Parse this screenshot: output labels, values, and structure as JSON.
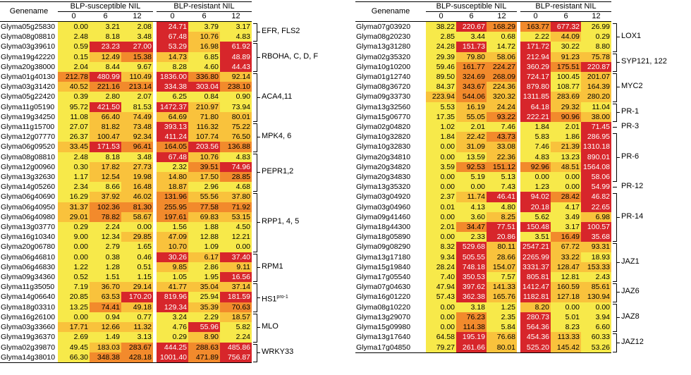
{
  "header": {
    "genename": "Genename",
    "susceptible": "BLP-susceptible NIL",
    "resistant": "BLP-resistant NIL",
    "timepoints": [
      "0",
      "6",
      "12",
      "0",
      "6",
      "12"
    ]
  },
  "left_rows": [
    {
      "gene": "Glyma05g25830",
      "values": [
        "0.00",
        "3.21",
        "2.08",
        "24.71",
        "3.79",
        "3.17"
      ],
      "levels": [
        1,
        1,
        1,
        4,
        1,
        1
      ]
    },
    {
      "gene": "Glyma08g08810",
      "values": [
        "2.48",
        "8.18",
        "3.48",
        "67.48",
        "10.76",
        "4.83"
      ],
      "levels": [
        1,
        1,
        1,
        4,
        2,
        1
      ]
    },
    {
      "gene": "Glyma03g39610",
      "values": [
        "0.59",
        "23.23",
        "27.00",
        "53.29",
        "16.98",
        "61.92"
      ],
      "levels": [
        1,
        4,
        4,
        4,
        2,
        4
      ]
    },
    {
      "gene": "Glyma19g42220",
      "values": [
        "0.15",
        "12.49",
        "15.38",
        "14.73",
        "6.85",
        "48.89"
      ],
      "levels": [
        1,
        2,
        3,
        2,
        1,
        4
      ]
    },
    {
      "gene": "Glyma20g38000",
      "values": [
        "2.04",
        "8.44",
        "9.67",
        "8.28",
        "4.60",
        "44.43"
      ],
      "levels": [
        1,
        1,
        1,
        1,
        1,
        4
      ]
    },
    {
      "gene": "Glyma01g40130",
      "values": [
        "212.78",
        "480.99",
        "110.49",
        "1836.00",
        "336.80",
        "92.14"
      ],
      "levels": [
        3,
        4,
        2,
        4,
        3,
        2
      ]
    },
    {
      "gene": "Glyma03g31420",
      "values": [
        "40.52",
        "221.16",
        "213.14",
        "334.38",
        "303.04",
        "238.10"
      ],
      "levels": [
        2,
        3,
        3,
        4,
        4,
        3
      ]
    },
    {
      "gene": "Glyma05g22420",
      "values": [
        "0.39",
        "2.80",
        "2.07",
        "6.25",
        "0.84",
        "0.90"
      ],
      "levels": [
        1,
        1,
        1,
        1,
        1,
        1
      ]
    },
    {
      "gene": "Glyma11g05190",
      "values": [
        "95.72",
        "421.50",
        "81.53",
        "1472.37",
        "210.97",
        "73.94"
      ],
      "levels": [
        1,
        4,
        1,
        4,
        2,
        1
      ]
    },
    {
      "gene": "Glyma19g34250",
      "values": [
        "11.08",
        "66.40",
        "74.49",
        "64.69",
        "71.80",
        "80.01"
      ],
      "levels": [
        1,
        2,
        2,
        2,
        2,
        2
      ]
    },
    {
      "gene": "Glyma11g15700",
      "values": [
        "27.07",
        "81.82",
        "73.48",
        "393.13",
        "116.32",
        "75.22"
      ],
      "levels": [
        1,
        2,
        2,
        4,
        2,
        2
      ]
    },
    {
      "gene": "Glyma12g07770",
      "values": [
        "26.37",
        "100.47",
        "92.34",
        "411.24",
        "107.74",
        "76.50"
      ],
      "levels": [
        1,
        2,
        2,
        4,
        2,
        2
      ]
    },
    {
      "gene": "Glyma06g09520",
      "values": [
        "33.45",
        "171.53",
        "96.41",
        "164.05",
        "203.56",
        "136.88"
      ],
      "levels": [
        2,
        4,
        3,
        3,
        4,
        3
      ]
    },
    {
      "gene": "Glyma08g08810",
      "values": [
        "2.48",
        "8.18",
        "3.48",
        "67.48",
        "10.76",
        "4.83"
      ],
      "levels": [
        1,
        1,
        1,
        4,
        2,
        1
      ]
    },
    {
      "gene": "Glyma12g00960",
      "values": [
        "0.30",
        "17.82",
        "27.73",
        "2.32",
        "39.51",
        "74.96"
      ],
      "levels": [
        1,
        2,
        2,
        1,
        3,
        4
      ]
    },
    {
      "gene": "Glyma13g32630",
      "values": [
        "1.17",
        "12.54",
        "19.98",
        "14.80",
        "17.50",
        "28.85"
      ],
      "levels": [
        1,
        2,
        2,
        2,
        2,
        3
      ]
    },
    {
      "gene": "Glyma14g05260",
      "values": [
        "2.34",
        "8.66",
        "16.48",
        "18.87",
        "2.96",
        "4.68"
      ],
      "levels": [
        1,
        1,
        2,
        2,
        1,
        1
      ]
    },
    {
      "gene": "Glyma06g40690",
      "values": [
        "16.29",
        "37.92",
        "46.02",
        "131.96",
        "55.56",
        "37.80"
      ],
      "levels": [
        1,
        2,
        2,
        3,
        2,
        2
      ]
    },
    {
      "gene": "Glyma06g40950",
      "values": [
        "31.37",
        "102.36",
        "81.30",
        "255.95",
        "77.58",
        "71.92"
      ],
      "levels": [
        2,
        3,
        3,
        3,
        3,
        3
      ]
    },
    {
      "gene": "Glyma06g40980",
      "values": [
        "29.01",
        "78.82",
        "58.67",
        "197.61",
        "69.83",
        "53.15"
      ],
      "levels": [
        2,
        3,
        2,
        3,
        2,
        2
      ]
    },
    {
      "gene": "Glyma13g03770",
      "values": [
        "0.29",
        "2.24",
        "0.00",
        "1.56",
        "1.88",
        "4.50"
      ],
      "levels": [
        1,
        1,
        1,
        1,
        1,
        1
      ]
    },
    {
      "gene": "Glyma16g10340",
      "values": [
        "9.00",
        "12.34",
        "29.85",
        "47.09",
        "12.88",
        "12.21"
      ],
      "levels": [
        1,
        1,
        2,
        2,
        1,
        1
      ]
    },
    {
      "gene": "Glyma20g06780",
      "values": [
        "0.00",
        "2.79",
        "1.65",
        "10.70",
        "1.09",
        "0.00"
      ],
      "levels": [
        1,
        1,
        1,
        2,
        1,
        1
      ]
    },
    {
      "gene": "Glyma06g46810",
      "values": [
        "0.00",
        "0.38",
        "0.46",
        "30.26",
        "6.17",
        "37.40"
      ],
      "levels": [
        1,
        1,
        1,
        4,
        2,
        4
      ]
    },
    {
      "gene": "Glyma06g46830",
      "values": [
        "1.22",
        "1.28",
        "0.51",
        "9.85",
        "2.86",
        "9.11"
      ],
      "levels": [
        1,
        1,
        1,
        2,
        1,
        2
      ]
    },
    {
      "gene": "Glyma09g34360",
      "values": [
        "0.52",
        "1.51",
        "1.15",
        "1.05",
        "1.95",
        "16.56"
      ],
      "levels": [
        1,
        1,
        1,
        1,
        1,
        4
      ]
    },
    {
      "gene": "Glyma11g35050",
      "values": [
        "7.19",
        "36.70",
        "29.14",
        "41.77",
        "35.04",
        "37.14"
      ],
      "levels": [
        1,
        2,
        2,
        2,
        2,
        2
      ]
    },
    {
      "gene": "Glyma14g06640",
      "values": [
        "20.85",
        "63.53",
        "170.20",
        "819.96",
        "25.94",
        "181.59"
      ],
      "levels": [
        1,
        2,
        4,
        4,
        1,
        4
      ]
    },
    {
      "gene": "Glyma18g03310",
      "values": [
        "13.25",
        "74.41",
        "49.18",
        "129.34",
        "35.39",
        "70.63"
      ],
      "levels": [
        1,
        3,
        2,
        4,
        2,
        3
      ]
    },
    {
      "gene": "Glyma16g26100",
      "values": [
        "0.00",
        "0.94",
        "0.77",
        "3.24",
        "2.29",
        "18.57"
      ],
      "levels": [
        1,
        1,
        1,
        1,
        1,
        2
      ]
    },
    {
      "gene": "Glyma03g33660",
      "values": [
        "17.71",
        "12.66",
        "11.32",
        "4.76",
        "55.96",
        "5.82"
      ],
      "levels": [
        2,
        2,
        2,
        1,
        4,
        1
      ]
    },
    {
      "gene": "Glyma19g36370",
      "values": [
        "2.69",
        "1.49",
        "3.13",
        "0.29",
        "8.90",
        "2.24"
      ],
      "levels": [
        1,
        1,
        1,
        1,
        2,
        1
      ]
    },
    {
      "gene": "Glyma02g39870",
      "values": [
        "49.45",
        "183.03",
        "283.67",
        "444.25",
        "288.63",
        "485.86"
      ],
      "levels": [
        1,
        2,
        3,
        4,
        3,
        4
      ]
    },
    {
      "gene": "Glyma14g38010",
      "values": [
        "66.30",
        "348.38",
        "428.18",
        "1001.40",
        "471.89",
        "756.87"
      ],
      "levels": [
        1,
        3,
        3,
        4,
        3,
        4
      ]
    }
  ],
  "right_rows": [
    {
      "gene": "Glyma07g03920",
      "values": [
        "38.22",
        "220.67",
        "168.29",
        "163.77",
        "677.32",
        "26.99"
      ],
      "levels": [
        1,
        4,
        3,
        3,
        4,
        1
      ]
    },
    {
      "gene": "Glyma08g20230",
      "values": [
        "2.85",
        "3.44",
        "0.68",
        "2.22",
        "44.09",
        "0.29"
      ],
      "levels": [
        1,
        1,
        1,
        1,
        2,
        1
      ]
    },
    {
      "gene": "Glyma13g31280",
      "values": [
        "24.28",
        "151.73",
        "14.72",
        "171.72",
        "30.22",
        "8.80"
      ],
      "levels": [
        1,
        4,
        1,
        4,
        1,
        1
      ]
    },
    {
      "gene": "Glyma02g35320",
      "values": [
        "29.39",
        "79.80",
        "58.06",
        "212.94",
        "91.23",
        "75.78"
      ],
      "levels": [
        1,
        2,
        2,
        4,
        2,
        2
      ]
    },
    {
      "gene": "Glyma10g10200",
      "values": [
        "59.46",
        "161.77",
        "224.27",
        "360.29",
        "175.51",
        "220.87"
      ],
      "levels": [
        1,
        3,
        3,
        4,
        3,
        4
      ]
    },
    {
      "gene": "Glyma01g12740",
      "values": [
        "89.50",
        "324.69",
        "268.09",
        "724.17",
        "100.45",
        "201.07"
      ],
      "levels": [
        1,
        3,
        3,
        4,
        1,
        2
      ]
    },
    {
      "gene": "Glyma08g36720",
      "values": [
        "84.37",
        "343.67",
        "224.36",
        "879.80",
        "108.77",
        "164.39"
      ],
      "levels": [
        1,
        3,
        2,
        4,
        1,
        2
      ]
    },
    {
      "gene": "Glyma09g33730",
      "values": [
        "223.94",
        "544.06",
        "320.32",
        "1311.85",
        "283.69",
        "280.20"
      ],
      "levels": [
        2,
        3,
        2,
        4,
        2,
        2
      ]
    },
    {
      "gene": "Glyma13g32560",
      "values": [
        "5.53",
        "16.19",
        "24.24",
        "64.18",
        "29.32",
        "11.04"
      ],
      "levels": [
        1,
        2,
        2,
        4,
        2,
        1
      ]
    },
    {
      "gene": "Glyma15g06770",
      "values": [
        "17.35",
        "55.05",
        "93.22",
        "222.21",
        "90.96",
        "38.00"
      ],
      "levels": [
        1,
        2,
        3,
        4,
        3,
        2
      ]
    },
    {
      "gene": "Glyma02g04820",
      "values": [
        "1.02",
        "2.01",
        "7.46",
        "1.84",
        "2.01",
        "71.45"
      ],
      "levels": [
        1,
        1,
        1,
        1,
        1,
        4
      ]
    },
    {
      "gene": "Glyma10g32820",
      "values": [
        "1.84",
        "22.42",
        "43.73",
        "5.83",
        "1.86",
        "286.95"
      ],
      "levels": [
        1,
        2,
        3,
        1,
        1,
        4
      ]
    },
    {
      "gene": "Glyma10g32830",
      "values": [
        "0.00",
        "31.09",
        "33.08",
        "7.46",
        "21.39",
        "1310.18"
      ],
      "levels": [
        1,
        2,
        2,
        1,
        2,
        4
      ]
    },
    {
      "gene": "Glyma20g34810",
      "values": [
        "0.00",
        "13.59",
        "22.36",
        "4.83",
        "13.23",
        "890.01"
      ],
      "levels": [
        1,
        1,
        2,
        1,
        1,
        4
      ]
    },
    {
      "gene": "Glyma20g34820",
      "values": [
        "3.59",
        "92.53",
        "151.12",
        "92.96",
        "48.51",
        "1564.08"
      ],
      "levels": [
        1,
        3,
        3,
        3,
        2,
        4
      ]
    },
    {
      "gene": "Glyma20g34830",
      "values": [
        "0.00",
        "5.19",
        "5.13",
        "0.00",
        "0.00",
        "58.06"
      ],
      "levels": [
        1,
        1,
        1,
        1,
        1,
        4
      ]
    },
    {
      "gene": "Glyma13g35320",
      "values": [
        "0.00",
        "0.00",
        "7.43",
        "1.23",
        "0.00",
        "54.99"
      ],
      "levels": [
        1,
        1,
        1,
        1,
        1,
        4
      ]
    },
    {
      "gene": "Glyma03g04920",
      "values": [
        "2.37",
        "11.74",
        "46.41",
        "94.02",
        "28.42",
        "46.82"
      ],
      "levels": [
        1,
        2,
        4,
        4,
        3,
        4
      ]
    },
    {
      "gene": "Glyma03g04960",
      "values": [
        "0.01",
        "4.13",
        "4.80",
        "20.18",
        "4.17",
        "22.65"
      ],
      "levels": [
        1,
        1,
        1,
        4,
        1,
        4
      ]
    },
    {
      "gene": "Glyma09g41460",
      "values": [
        "0.00",
        "3.60",
        "8.25",
        "5.62",
        "3.49",
        "6.98"
      ],
      "levels": [
        1,
        1,
        2,
        1,
        1,
        2
      ]
    },
    {
      "gene": "Glyma18g44300",
      "values": [
        "2.01",
        "34.47",
        "77.51",
        "150.48",
        "3.17",
        "100.57"
      ],
      "levels": [
        1,
        3,
        4,
        4,
        1,
        4
      ]
    },
    {
      "gene": "Glyma18g05890",
      "values": [
        "0.00",
        "2.33",
        "20.86",
        "3.51",
        "16.49",
        "35.68"
      ],
      "levels": [
        1,
        1,
        4,
        1,
        3,
        4
      ]
    },
    {
      "gene": "Glyma09g08290",
      "values": [
        "8.32",
        "529.68",
        "80.11",
        "2547.21",
        "67.72",
        "93.31"
      ],
      "levels": [
        1,
        4,
        2,
        4,
        2,
        2
      ]
    },
    {
      "gene": "Glyma13g17180",
      "values": [
        "9.34",
        "505.55",
        "28.66",
        "2265.99",
        "33.22",
        "18.93"
      ],
      "levels": [
        1,
        4,
        2,
        4,
        2,
        1
      ]
    },
    {
      "gene": "Glyma15g19840",
      "values": [
        "28.24",
        "748.18",
        "154.07",
        "3331.37",
        "128.47",
        "153.33"
      ],
      "levels": [
        1,
        4,
        2,
        4,
        2,
        2
      ]
    },
    {
      "gene": "Glyma17g05540",
      "values": [
        "7.40",
        "350.53",
        "7.57",
        "805.81",
        "12.81",
        "2.43"
      ],
      "levels": [
        1,
        4,
        1,
        4,
        1,
        1
      ]
    },
    {
      "gene": "Glyma07g04630",
      "values": [
        "47.94",
        "397.62",
        "141.33",
        "1412.47",
        "160.59",
        "85.61"
      ],
      "levels": [
        1,
        4,
        2,
        4,
        2,
        2
      ]
    },
    {
      "gene": "Glyma16g01220",
      "values": [
        "57.43",
        "362.38",
        "165.76",
        "1182.81",
        "127.18",
        "130.94"
      ],
      "levels": [
        1,
        4,
        2,
        4,
        2,
        2
      ]
    },
    {
      "gene": "Glyma08g10220",
      "values": [
        "0.00",
        "3.18",
        "1.25",
        "8.20",
        "0.00",
        "0.00"
      ],
      "levels": [
        1,
        1,
        1,
        2,
        1,
        1
      ]
    },
    {
      "gene": "Glyma13g29070",
      "values": [
        "0.00",
        "76.23",
        "2.35",
        "280.73",
        "5.01",
        "3.94"
      ],
      "levels": [
        1,
        3,
        1,
        4,
        1,
        1
      ]
    },
    {
      "gene": "Glyma15g09980",
      "values": [
        "0.00",
        "114.38",
        "5.84",
        "564.36",
        "8.23",
        "6.60"
      ],
      "levels": [
        1,
        3,
        1,
        4,
        1,
        1
      ]
    },
    {
      "gene": "Glyma13g17640",
      "values": [
        "64.58",
        "195.19",
        "76.68",
        "454.36",
        "113.33",
        "60.33"
      ],
      "levels": [
        1,
        4,
        2,
        4,
        2,
        1
      ]
    },
    {
      "gene": "Glyma17g04850",
      "values": [
        "79.27",
        "261.66",
        "80.01",
        "525.20",
        "145.42",
        "53.26"
      ],
      "levels": [
        1,
        4,
        2,
        4,
        2,
        1
      ]
    }
  ],
  "left_groups": [
    {
      "label": "EFR, FLS2",
      "start": 0,
      "end": 1
    },
    {
      "label": "RBOHA, C, D, F",
      "start": 2,
      "end": 4
    },
    {
      "label": "ACA4,11",
      "start": 5,
      "end": 9
    },
    {
      "label": "MPK4, 6",
      "start": 10,
      "end": 12
    },
    {
      "label": "PEPR1,2",
      "start": 13,
      "end": 16
    },
    {
      "label": "RPP1, 4, 5",
      "start": 17,
      "end": 22
    },
    {
      "label": "RPM1",
      "start": 23,
      "end": 25
    },
    {
      "label": "HS1",
      "sup": "pro-1",
      "start": 26,
      "end": 28
    },
    {
      "label": "MLO",
      "start": 29,
      "end": 31
    },
    {
      "label": "WRKY33",
      "start": 32,
      "end": 33
    }
  ],
  "right_groups": [
    {
      "label": "LOX1",
      "start": 0,
      "end": 2
    },
    {
      "label": "SYP121, 122",
      "start": 3,
      "end": 4
    },
    {
      "label": "MYC2",
      "start": 5,
      "end": 7
    },
    {
      "label": "PR-1",
      "start": 8,
      "end": 9
    },
    {
      "label": "PR-3",
      "start": 10,
      "end": 10,
      "tick": true
    },
    {
      "label": "PR-6",
      "start": 11,
      "end": 15
    },
    {
      "label": "PR-12",
      "start": 16,
      "end": 16,
      "tick": true
    },
    {
      "label": "PR-14",
      "start": 17,
      "end": 21
    },
    {
      "label": "JAZ1",
      "start": 22,
      "end": 25
    },
    {
      "label": "JAZ6",
      "start": 26,
      "end": 27
    },
    {
      "label": "JAZ8",
      "start": 28,
      "end": 30
    },
    {
      "label": "JAZ12",
      "start": 31,
      "end": 32
    }
  ],
  "colors": {
    "level1": "#f7e94a",
    "level2": "#f9c23c",
    "level3": "#f28a2c",
    "level4": "#d7262b"
  }
}
